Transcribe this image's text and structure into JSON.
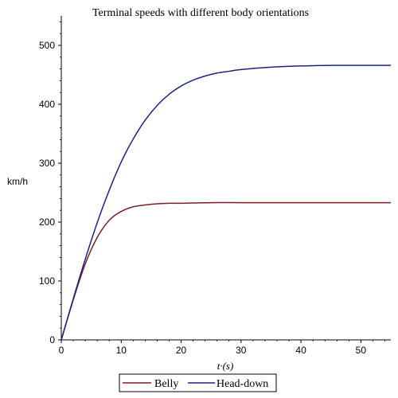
{
  "chart_data": {
    "type": "line",
    "title": "Terminal speeds with different body orientations",
    "xlabel": "t·(s)",
    "ylabel": "km/h",
    "xlim": [
      0,
      55
    ],
    "ylim": [
      0,
      550
    ],
    "xticks": [
      0,
      10,
      20,
      30,
      40,
      50
    ],
    "yticks": [
      0,
      100,
      200,
      300,
      400,
      500
    ],
    "grid": false,
    "legend_position": "bottom-center",
    "series": [
      {
        "name": "Belly",
        "color": "#7a1f22",
        "x": [
          0,
          2,
          4,
          6,
          8,
          10,
          12,
          14,
          16,
          18,
          20,
          25,
          30,
          35,
          40,
          45,
          50,
          55
        ],
        "y": [
          0,
          68,
          129,
          174,
          203,
          218,
          226,
          229,
          231,
          232,
          232,
          233,
          233,
          233,
          233,
          233,
          233,
          233
        ]
      },
      {
        "name": "Head-down",
        "color": "#1b2580",
        "x": [
          0,
          2,
          4,
          6,
          8,
          10,
          12,
          14,
          16,
          18,
          20,
          22,
          24,
          26,
          28,
          30,
          35,
          40,
          45,
          50,
          55
        ],
        "y": [
          0,
          70,
          137,
          199,
          254,
          302,
          341,
          373,
          398,
          417,
          431,
          441,
          448,
          453,
          456,
          459,
          463,
          465,
          466,
          466,
          466
        ]
      }
    ]
  }
}
